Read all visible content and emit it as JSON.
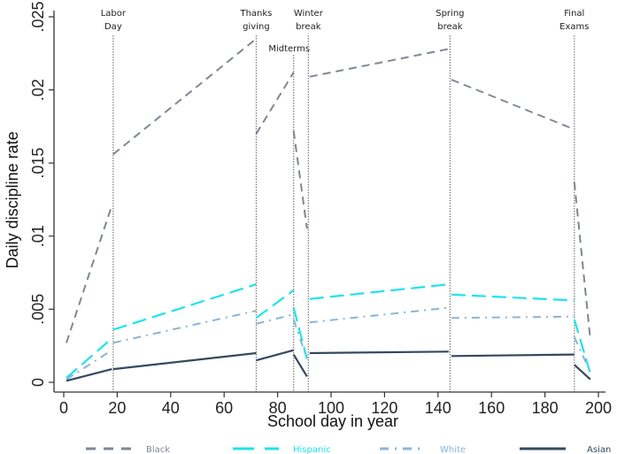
{
  "chart_data": {
    "type": "line",
    "title": "",
    "xlabel": "School day in year",
    "ylabel": "Daily discipline rate",
    "xlim": [
      0,
      200
    ],
    "ylim": [
      0,
      0.025
    ],
    "x_ticks": [
      0,
      20,
      40,
      60,
      80,
      100,
      120,
      140,
      160,
      180,
      200
    ],
    "x_tick_labels": [
      "0",
      "20",
      "40",
      "60",
      "80",
      "100",
      "120",
      "140",
      "160",
      "180",
      "200"
    ],
    "y_ticks": [
      0,
      0.005,
      0.01,
      0.015,
      0.02,
      0.025
    ],
    "y_tick_labels": [
      "0",
      ".005",
      ".01",
      ".015",
      ".02",
      ".025"
    ],
    "grid": false,
    "legend_position": "bottom",
    "events": [
      {
        "label_lines": [
          "Labor",
          "Day"
        ],
        "x": 18.5
      },
      {
        "label_lines": [
          "Thanks",
          "giving"
        ],
        "x": 72
      },
      {
        "label_lines": [
          "Midterms"
        ],
        "x": 86
      },
      {
        "label_lines": [
          "Winter",
          "break"
        ],
        "x": 91.5
      },
      {
        "label_lines": [
          "Spring",
          "break"
        ],
        "x": 144.5
      },
      {
        "label_lines": [
          "Final",
          "Exams"
        ],
        "x": 191
      }
    ],
    "series": [
      {
        "name": "Black",
        "color": "#7f8793",
        "style": "dash",
        "segments": [
          [
            [
              1,
              0.0027
            ],
            [
              18,
              0.0121
            ]
          ],
          [
            [
              18.5,
              0.0156
            ],
            [
              72,
              0.0235
            ]
          ],
          [
            [
              72,
              0.017
            ],
            [
              86,
              0.0212
            ]
          ],
          [
            [
              86,
              0.0172
            ],
            [
              91,
              0.0105
            ]
          ],
          [
            [
              92,
              0.0209
            ],
            [
              144,
              0.0228
            ]
          ],
          [
            [
              145,
              0.0207
            ],
            [
              191,
              0.0173
            ]
          ],
          [
            [
              191,
              0.0137
            ],
            [
              197,
              0.0029
            ]
          ]
        ]
      },
      {
        "name": "Hispanic",
        "color": "#1fe3ea",
        "style": "longdash",
        "segments": [
          [
            [
              1,
              0.0003
            ],
            [
              18,
              0.003
            ]
          ],
          [
            [
              18.5,
              0.0036
            ],
            [
              72,
              0.0067
            ]
          ],
          [
            [
              72,
              0.0044
            ],
            [
              86,
              0.0063
            ]
          ],
          [
            [
              86,
              0.0051
            ],
            [
              91,
              0.0016
            ]
          ],
          [
            [
              92,
              0.0057
            ],
            [
              144,
              0.0067
            ]
          ],
          [
            [
              145,
              0.006
            ],
            [
              191,
              0.0056
            ]
          ],
          [
            [
              191,
              0.0043
            ],
            [
              197,
              0.0006
            ]
          ]
        ]
      },
      {
        "name": "White",
        "color": "#8cb4d4",
        "style": "dashdot",
        "segments": [
          [
            [
              1,
              0.0002
            ],
            [
              18,
              0.0022
            ]
          ],
          [
            [
              18.5,
              0.0027
            ],
            [
              72,
              0.0049
            ]
          ],
          [
            [
              72,
              0.004
            ],
            [
              85,
              0.0046
            ]
          ],
          [
            [
              86,
              0.0043
            ],
            [
              91,
              0.0016
            ]
          ],
          [
            [
              92,
              0.0041
            ],
            [
              144,
              0.0051
            ]
          ],
          [
            [
              145,
              0.0044
            ],
            [
              191,
              0.0045
            ]
          ],
          [
            [
              191,
              0.0031
            ],
            [
              197,
              0.0007
            ]
          ]
        ]
      },
      {
        "name": "Asian",
        "color": "#34495e",
        "style": "solid",
        "segments": [
          [
            [
              1,
              0.0001
            ],
            [
              18,
              0.0009
            ]
          ],
          [
            [
              18.5,
              0.0009
            ],
            [
              72,
              0.002
            ]
          ],
          [
            [
              72,
              0.0015
            ],
            [
              86,
              0.0022
            ]
          ],
          [
            [
              86,
              0.0019
            ],
            [
              91,
              0.0004
            ]
          ],
          [
            [
              92,
              0.002
            ],
            [
              144,
              0.0021
            ]
          ],
          [
            [
              145,
              0.0018
            ],
            [
              191,
              0.0019
            ]
          ],
          [
            [
              191,
              0.0012
            ],
            [
              197,
              0.0002
            ]
          ]
        ]
      }
    ]
  }
}
